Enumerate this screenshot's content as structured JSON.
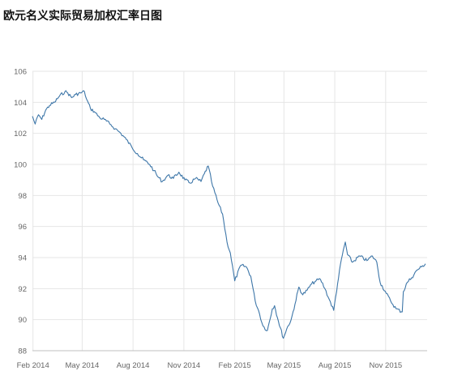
{
  "title": "欧元名义实际贸易加权汇率日图",
  "colors": {
    "line": "#3d76a8",
    "grid": "#e6e6e6",
    "axis": "#bfbfbf",
    "text": "#666666"
  },
  "chart_data": {
    "type": "line",
    "title": "欧元名义实际贸易加权汇率日图",
    "xlabel": "",
    "ylabel": "",
    "grid": true,
    "legend": "none",
    "x_range": [
      "2014-01-31",
      "2016-01-15"
    ],
    "ylim": [
      88,
      106
    ],
    "yticks": [
      88,
      90,
      92,
      94,
      96,
      98,
      100,
      102,
      104,
      106
    ],
    "xticks": [
      {
        "date": "2014-02-01",
        "label": "Feb 2014"
      },
      {
        "date": "2014-05-01",
        "label": "May 2014"
      },
      {
        "date": "2014-08-01",
        "label": "Aug 2014"
      },
      {
        "date": "2014-11-01",
        "label": "Nov 2014"
      },
      {
        "date": "2015-02-01",
        "label": "Feb 2015"
      },
      {
        "date": "2015-05-01",
        "label": "May 2015"
      },
      {
        "date": "2015-08-01",
        "label": "Aug 2015"
      },
      {
        "date": "2015-11-01",
        "label": "Nov 2015"
      }
    ],
    "series": [
      {
        "x": [
          "2014-01-31",
          "2014-02-05",
          "2014-02-11",
          "2014-02-17",
          "2014-02-24",
          "2014-03-03",
          "2014-03-12",
          "2014-03-21",
          "2014-03-31",
          "2014-04-05",
          "2014-04-12",
          "2014-04-19",
          "2014-04-28",
          "2014-05-05",
          "2014-05-09",
          "2014-05-16",
          "2014-05-23",
          "2014-06-02",
          "2014-06-10",
          "2014-06-20",
          "2014-06-30",
          "2014-07-10",
          "2014-07-20",
          "2014-07-30",
          "2014-08-09",
          "2014-08-20",
          "2014-08-31",
          "2014-09-08",
          "2014-09-15",
          "2014-09-23",
          "2014-10-03",
          "2014-10-13",
          "2014-10-23",
          "2014-11-03",
          "2014-11-12",
          "2014-11-22",
          "2014-12-02",
          "2014-12-08",
          "2014-12-15",
          "2014-12-23",
          "2015-01-02",
          "2015-01-10",
          "2015-01-18",
          "2015-01-24",
          "2015-02-01",
          "2015-02-12",
          "2015-02-22",
          "2015-03-02",
          "2015-03-10",
          "2015-03-16",
          "2015-03-24",
          "2015-04-01",
          "2015-04-10",
          "2015-04-14",
          "2015-04-21",
          "2015-04-30",
          "2015-05-06",
          "2015-05-14",
          "2015-05-21",
          "2015-05-28",
          "2015-06-04",
          "2015-06-12",
          "2015-06-20",
          "2015-06-28",
          "2015-07-06",
          "2015-07-14",
          "2015-07-22",
          "2015-07-30",
          "2015-08-06",
          "2015-08-13",
          "2015-08-20",
          "2015-08-24",
          "2015-09-02",
          "2015-09-15",
          "2015-09-28",
          "2015-10-08",
          "2015-10-16",
          "2015-10-22",
          "2015-11-02",
          "2015-11-10",
          "2015-11-20",
          "2015-12-01",
          "2015-12-03",
          "2015-12-10",
          "2015-12-18",
          "2015-12-28",
          "2016-01-05",
          "2016-01-12"
        ],
        "values": [
          103.1,
          102.6,
          103.2,
          102.9,
          103.5,
          103.8,
          104.0,
          104.4,
          104.7,
          104.6,
          104.3,
          104.5,
          104.6,
          104.7,
          104.2,
          103.6,
          103.4,
          103.0,
          102.9,
          102.6,
          102.3,
          102.0,
          101.6,
          101.1,
          100.7,
          100.3,
          100.0,
          99.6,
          99.2,
          98.9,
          99.3,
          99.1,
          99.5,
          99.0,
          98.8,
          99.1,
          98.9,
          99.4,
          99.9,
          98.6,
          97.5,
          96.8,
          95.0,
          94.3,
          92.5,
          93.5,
          93.4,
          92.8,
          91.2,
          90.6,
          89.6,
          89.3,
          90.7,
          90.9,
          89.9,
          88.8,
          89.4,
          90.0,
          91.0,
          92.1,
          91.6,
          91.9,
          92.3,
          92.5,
          92.6,
          92.0,
          91.3,
          90.6,
          92.3,
          93.9,
          95.0,
          94.2,
          93.7,
          94.1,
          93.8,
          94.1,
          93.7,
          92.4,
          91.7,
          91.2,
          90.7,
          90.5,
          91.8,
          92.4,
          92.7,
          93.2,
          93.4,
          93.6
        ]
      }
    ]
  }
}
